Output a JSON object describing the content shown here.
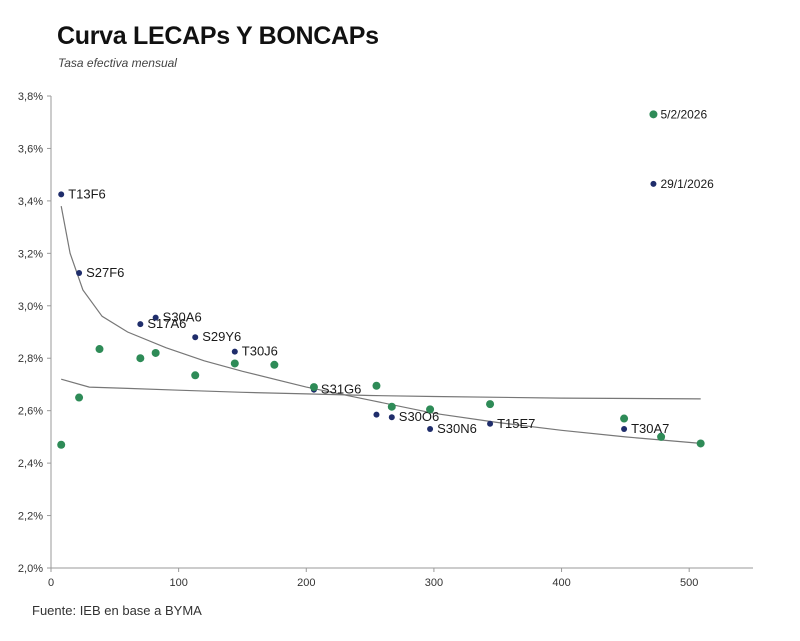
{
  "header": {
    "title": "Curva LECAPs Y BONCAPs",
    "subtitle": "Tasa efectiva mensual"
  },
  "footer": {
    "source": "Fuente: IEB en base a BYMA"
  },
  "colors": {
    "navy": "#1f2d6b",
    "green": "#2e8b57",
    "axis": "#9a9a9a",
    "trend": "#777777"
  },
  "chart_data": {
    "type": "scatter",
    "title": "Curva LECAPs Y BONCAPs",
    "subtitle": "Tasa efectiva mensual",
    "xlabel": "",
    "ylabel": "",
    "xlim": [
      0,
      550
    ],
    "ylim": [
      2.0,
      3.8
    ],
    "x_ticks": [
      0,
      100,
      200,
      300,
      400,
      500
    ],
    "y_ticks": [
      2.0,
      2.2,
      2.4,
      2.6,
      2.8,
      3.0,
      3.2,
      3.4,
      3.6,
      3.8
    ],
    "y_tick_labels": [
      "2,0%",
      "2,2%",
      "2,4%",
      "2,6%",
      "2,8%",
      "3,0%",
      "3,2%",
      "3,4%",
      "3,6%",
      "3,8%"
    ],
    "x_tick_labels": [
      "0",
      "100",
      "200",
      "300",
      "400",
      "500"
    ],
    "grid": false,
    "series": [
      {
        "color": "navy",
        "points": [
          {
            "x": 8,
            "y": 3.425,
            "label": "T13F6"
          },
          {
            "x": 22,
            "y": 3.125,
            "label": "S27F6"
          },
          {
            "x": 70,
            "y": 2.93,
            "label": "S17A6"
          },
          {
            "x": 82,
            "y": 2.955,
            "label": "S30A6"
          },
          {
            "x": 113,
            "y": 2.88,
            "label": "S29Y6"
          },
          {
            "x": 144,
            "y": 2.825,
            "label": "T30J6"
          },
          {
            "x": 206,
            "y": 2.68,
            "label": "S31G6"
          },
          {
            "x": 255,
            "y": 2.585,
            "label": ""
          },
          {
            "x": 267,
            "y": 2.575,
            "label": "S30O6"
          },
          {
            "x": 297,
            "y": 2.53,
            "label": "S30N6"
          },
          {
            "x": 344,
            "y": 2.55,
            "label": "T15E7"
          },
          {
            "x": 449,
            "y": 2.53,
            "label": "T30A7"
          },
          {
            "x": 478,
            "y": 2.505,
            "label": ""
          },
          {
            "x": 472,
            "y": 3.465,
            "label": "29/1/2026"
          }
        ]
      },
      {
        "color": "green",
        "points": [
          {
            "x": 8,
            "y": 2.47,
            "label": ""
          },
          {
            "x": 22,
            "y": 2.65,
            "label": ""
          },
          {
            "x": 38,
            "y": 2.835,
            "label": ""
          },
          {
            "x": 70,
            "y": 2.8,
            "label": ""
          },
          {
            "x": 82,
            "y": 2.82,
            "label": ""
          },
          {
            "x": 113,
            "y": 2.735,
            "label": ""
          },
          {
            "x": 144,
            "y": 2.78,
            "label": ""
          },
          {
            "x": 175,
            "y": 2.775,
            "label": ""
          },
          {
            "x": 206,
            "y": 2.69,
            "label": ""
          },
          {
            "x": 255,
            "y": 2.695,
            "label": ""
          },
          {
            "x": 267,
            "y": 2.615,
            "label": ""
          },
          {
            "x": 297,
            "y": 2.605,
            "label": ""
          },
          {
            "x": 344,
            "y": 2.625,
            "label": ""
          },
          {
            "x": 449,
            "y": 2.57,
            "label": ""
          },
          {
            "x": 478,
            "y": 2.5,
            "label": ""
          },
          {
            "x": 509,
            "y": 2.475,
            "label": ""
          },
          {
            "x": 472,
            "y": 3.73,
            "label": "5/2/2026"
          }
        ]
      }
    ],
    "trendlines": [
      {
        "color": "trend",
        "points": [
          [
            8,
            3.38
          ],
          [
            15,
            3.2
          ],
          [
            25,
            3.06
          ],
          [
            40,
            2.96
          ],
          [
            60,
            2.9
          ],
          [
            90,
            2.84
          ],
          [
            120,
            2.79
          ],
          [
            150,
            2.75
          ],
          [
            200,
            2.69
          ],
          [
            250,
            2.64
          ],
          [
            300,
            2.59
          ],
          [
            350,
            2.555
          ],
          [
            400,
            2.525
          ],
          [
            450,
            2.5
          ],
          [
            509,
            2.475
          ]
        ]
      },
      {
        "color": "trend",
        "points": [
          [
            8,
            2.72
          ],
          [
            30,
            2.69
          ],
          [
            60,
            2.685
          ],
          [
            100,
            2.678
          ],
          [
            150,
            2.67
          ],
          [
            200,
            2.664
          ],
          [
            250,
            2.658
          ],
          [
            300,
            2.654
          ],
          [
            400,
            2.648
          ],
          [
            509,
            2.645
          ]
        ]
      }
    ]
  }
}
